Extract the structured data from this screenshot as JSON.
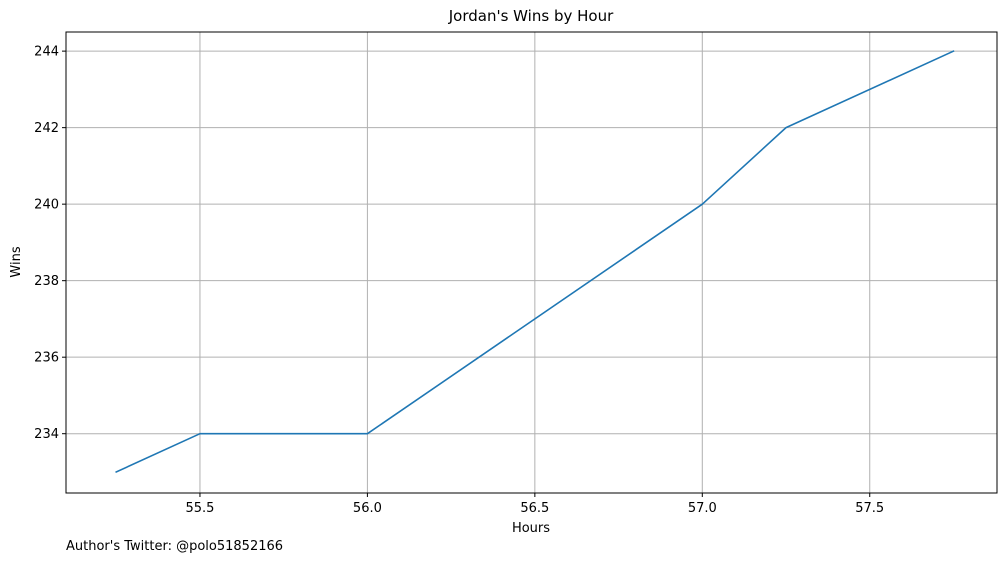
{
  "chart_data": {
    "type": "line",
    "title": "Jordan's Wins by Hour",
    "xlabel": "Hours",
    "ylabel": "Wins",
    "xlim": [
      55.1,
      57.88
    ],
    "ylim": [
      232.45,
      244.5
    ],
    "xticks": [
      55.5,
      56.0,
      56.5,
      57.0,
      57.5
    ],
    "xtick_labels": [
      "55.5",
      "56.0",
      "56.5",
      "57.0",
      "57.5"
    ],
    "yticks": [
      234,
      236,
      238,
      240,
      242,
      244
    ],
    "ytick_labels": [
      "234",
      "236",
      "238",
      "240",
      "242",
      "244"
    ],
    "grid": true,
    "series": [
      {
        "color": "#1f77b4",
        "x": [
          55.25,
          55.5,
          56.0,
          57.0,
          57.25,
          57.75
        ],
        "y": [
          233,
          234,
          234,
          240,
          242,
          244
        ]
      }
    ]
  },
  "footer": {
    "note": "Author's Twitter: @polo51852166"
  }
}
